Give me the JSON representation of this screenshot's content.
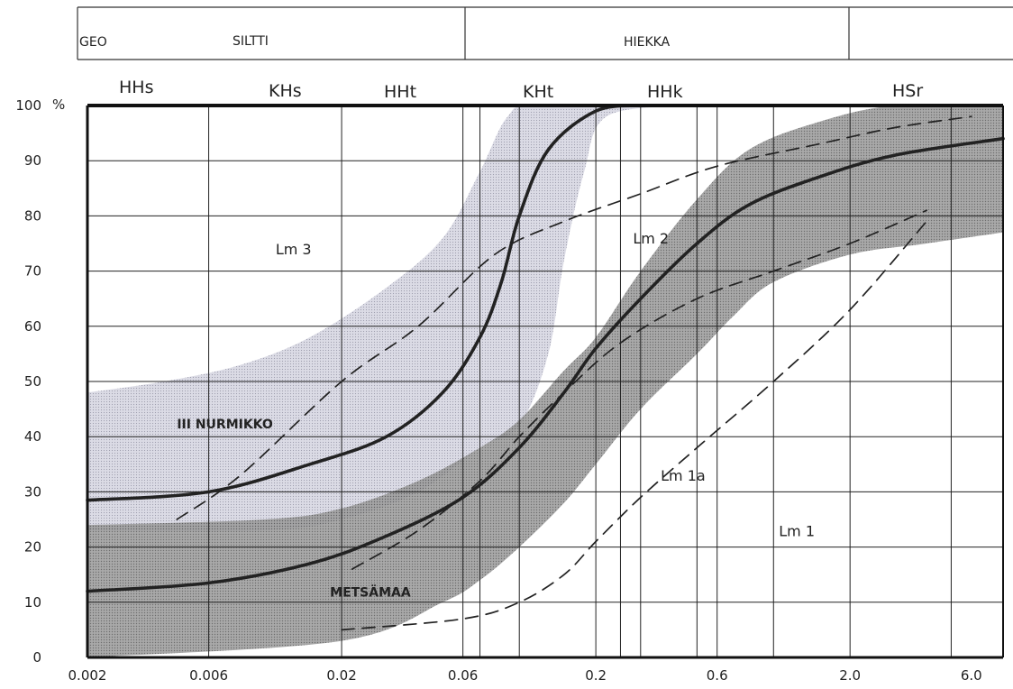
{
  "header": {
    "geo": "GEO",
    "siltti": "SILTTI",
    "hiekka": "HIEKKA"
  },
  "class_labels": [
    "HHs",
    "KHs",
    "HHt",
    "KHt",
    "HHk",
    "HSr"
  ],
  "chart_data": {
    "type": "line",
    "x_scale": "log",
    "xlim": [
      0.002,
      8
    ],
    "ylim": [
      0,
      100
    ],
    "ylabel_unit": "%",
    "xticks": [
      "0.002",
      "0.006",
      "0.02",
      "0.06",
      "0.2",
      "0.6",
      "2.0",
      "6.0"
    ],
    "yticks": [
      "0",
      "10",
      "20",
      "30",
      "40",
      "50",
      "60",
      "70",
      "80",
      "90",
      "100"
    ],
    "grid": true,
    "vertical_gridlines": [
      0.002,
      0.006,
      0.02,
      0.06,
      0.07,
      0.1,
      0.2,
      0.25,
      0.3,
      0.5,
      0.6,
      1,
      2,
      5,
      8
    ],
    "zone_labels": [
      {
        "text": "Lm 3",
        "x": 0.011,
        "y": 73
      },
      {
        "text": "Lm 2",
        "x": 0.28,
        "y": 75
      },
      {
        "text": "Lm 1a",
        "x": 0.36,
        "y": 32
      },
      {
        "text": "Lm 1",
        "x": 1.05,
        "y": 22
      },
      {
        "text": "III NURMIKKO",
        "x": 0.0045,
        "y": 41.5
      },
      {
        "text": "METSÄMAA",
        "x": 0.018,
        "y": 11
      }
    ],
    "bands": [
      {
        "fill": "#c8c8d6",
        "upper": [
          [
            0.002,
            48
          ],
          [
            0.004,
            50
          ],
          [
            0.008,
            53
          ],
          [
            0.015,
            58
          ],
          [
            0.03,
            67
          ],
          [
            0.05,
            76
          ],
          [
            0.07,
            88
          ],
          [
            0.09,
            98
          ],
          [
            0.12,
            100
          ],
          [
            0.5,
            100
          ]
        ],
        "lower": [
          [
            0.45,
            100
          ],
          [
            0.22,
            98
          ],
          [
            0.18,
            88
          ],
          [
            0.15,
            72
          ],
          [
            0.13,
            55
          ],
          [
            0.1,
            42
          ],
          [
            0.07,
            38
          ],
          [
            0.04,
            30
          ],
          [
            0.02,
            25
          ],
          [
            0.01,
            23
          ],
          [
            0.002,
            23
          ]
        ]
      },
      {
        "fill": "#8c8c8c",
        "upper": [
          [
            0.002,
            24
          ],
          [
            0.01,
            25
          ],
          [
            0.02,
            27
          ],
          [
            0.04,
            32
          ],
          [
            0.07,
            38
          ],
          [
            0.1,
            43
          ],
          [
            0.15,
            52
          ],
          [
            0.2,
            58
          ],
          [
            0.3,
            70
          ],
          [
            0.5,
            83
          ],
          [
            0.8,
            92
          ],
          [
            1.5,
            97
          ],
          [
            3,
            100
          ],
          [
            8,
            100
          ]
        ],
        "lower": [
          [
            8,
            77
          ],
          [
            4,
            75
          ],
          [
            2,
            73
          ],
          [
            1,
            68
          ],
          [
            0.7,
            62
          ],
          [
            0.5,
            55
          ],
          [
            0.3,
            45
          ],
          [
            0.2,
            35
          ],
          [
            0.15,
            28
          ],
          [
            0.1,
            20
          ],
          [
            0.07,
            14
          ],
          [
            0.05,
            10
          ],
          [
            0.02,
            3
          ],
          [
            0.002,
            0
          ]
        ]
      }
    ],
    "series": [
      {
        "style": "solid",
        "points": [
          [
            0.002,
            28.5
          ],
          [
            0.006,
            30
          ],
          [
            0.015,
            35
          ],
          [
            0.03,
            40
          ],
          [
            0.05,
            48
          ],
          [
            0.07,
            58
          ],
          [
            0.085,
            68
          ],
          [
            0.1,
            80
          ],
          [
            0.13,
            92
          ],
          [
            0.2,
            99
          ],
          [
            0.3,
            100
          ]
        ]
      },
      {
        "style": "solid",
        "points": [
          [
            0.002,
            12
          ],
          [
            0.006,
            13.5
          ],
          [
            0.015,
            17
          ],
          [
            0.03,
            22
          ],
          [
            0.06,
            29
          ],
          [
            0.1,
            38
          ],
          [
            0.15,
            48
          ],
          [
            0.2,
            56
          ],
          [
            0.3,
            65
          ],
          [
            0.5,
            75
          ],
          [
            0.8,
            82
          ],
          [
            1.5,
            87
          ],
          [
            3,
            91
          ],
          [
            8,
            94
          ]
        ]
      },
      {
        "style": "dashed",
        "points": [
          [
            0.0045,
            25
          ],
          [
            0.008,
            33
          ],
          [
            0.02,
            50
          ],
          [
            0.04,
            60
          ],
          [
            0.08,
            73
          ],
          [
            0.15,
            79
          ],
          [
            0.3,
            84
          ],
          [
            0.6,
            89
          ],
          [
            1.5,
            93
          ],
          [
            3,
            96
          ],
          [
            6,
            98
          ]
        ]
      },
      {
        "style": "dashed",
        "points": [
          [
            0.022,
            16
          ],
          [
            0.04,
            23
          ],
          [
            0.07,
            32
          ],
          [
            0.1,
            40
          ],
          [
            0.15,
            48
          ],
          [
            0.25,
            57
          ],
          [
            0.5,
            65
          ],
          [
            1,
            70
          ],
          [
            2,
            75
          ],
          [
            4,
            81
          ]
        ]
      },
      {
        "style": "dashed",
        "points": [
          [
            0.02,
            5
          ],
          [
            0.06,
            7
          ],
          [
            0.1,
            10
          ],
          [
            0.15,
            15
          ],
          [
            0.2,
            21
          ],
          [
            0.3,
            29
          ],
          [
            0.5,
            38
          ],
          [
            1,
            50
          ],
          [
            2,
            63
          ],
          [
            4,
            79
          ]
        ]
      }
    ]
  }
}
